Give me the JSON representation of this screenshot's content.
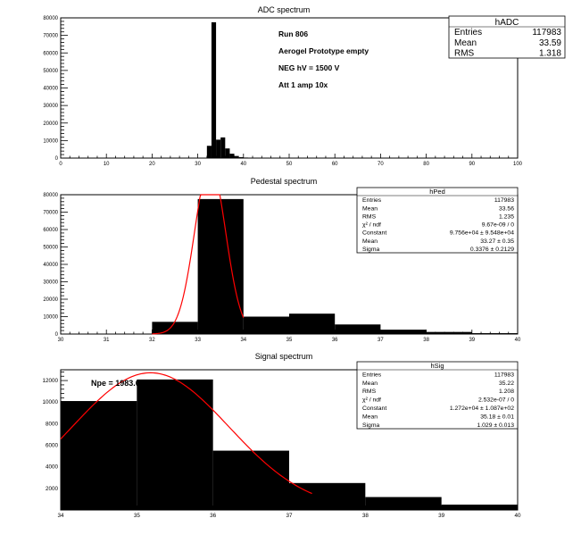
{
  "chart_data": [
    {
      "type": "bar",
      "title": "ADC spectrum",
      "xlim": [
        0,
        100
      ],
      "ylim": [
        0,
        80000
      ],
      "xticks": [
        0,
        10,
        20,
        30,
        40,
        50,
        60,
        70,
        80,
        90,
        100
      ],
      "yticks": [
        0,
        10000,
        20000,
        30000,
        40000,
        50000,
        60000,
        70000,
        80000
      ],
      "bins": [
        {
          "x0": 32,
          "x1": 33,
          "y": 7000
        },
        {
          "x0": 33,
          "x1": 34,
          "y": 77500
        },
        {
          "x0": 34,
          "x1": 35,
          "y": 10500
        },
        {
          "x0": 35,
          "x1": 36,
          "y": 11800
        },
        {
          "x0": 36,
          "x1": 37,
          "y": 5500
        },
        {
          "x0": 37,
          "x1": 38,
          "y": 2500
        },
        {
          "x0": 38,
          "x1": 39,
          "y": 1200
        },
        {
          "x0": 39,
          "x1": 40,
          "y": 500
        },
        {
          "x0": 40,
          "x1": 41,
          "y": 300
        },
        {
          "x0": 41,
          "x1": 42,
          "y": 150
        },
        {
          "x0": 42,
          "x1": 43,
          "y": 80
        }
      ],
      "annotations": [
        "Run  806",
        "Aerogel Prototype empty",
        "NEG hV = 1500 V",
        "Att 1 amp 10x"
      ],
      "stats": {
        "name": "hADC",
        "rows": [
          [
            "Entries",
            "117983"
          ],
          [
            "Mean",
            "33.59"
          ],
          [
            "RMS",
            "1.318"
          ]
        ]
      }
    },
    {
      "type": "bar",
      "title": "Pedestal spectrum",
      "xlim": [
        30,
        40
      ],
      "ylim": [
        0,
        80000
      ],
      "xticks": [
        30,
        31,
        32,
        33,
        34,
        35,
        36,
        37,
        38,
        39,
        40
      ],
      "yticks": [
        0,
        10000,
        20000,
        30000,
        40000,
        50000,
        60000,
        70000,
        80000
      ],
      "bins": [
        {
          "x0": 32,
          "x1": 33,
          "y": 7000
        },
        {
          "x0": 33,
          "x1": 34,
          "y": 77500
        },
        {
          "x0": 34,
          "x1": 35,
          "y": 10000
        },
        {
          "x0": 35,
          "x1": 36,
          "y": 11700
        },
        {
          "x0": 36,
          "x1": 37,
          "y": 5500
        },
        {
          "x0": 37,
          "x1": 38,
          "y": 2500
        },
        {
          "x0": 38,
          "x1": 39,
          "y": 1200
        },
        {
          "x0": 39,
          "x1": 40,
          "y": 500
        }
      ],
      "fit": {
        "type": "gaus",
        "constant": 97560,
        "mean": 33.27,
        "sigma": 0.3376,
        "range": [
          32.0,
          34.0
        ],
        "color": "#ff0000"
      },
      "stats": {
        "name": "hPed",
        "rows": [
          [
            "Entries",
            "117983"
          ],
          [
            "Mean",
            "33.56"
          ],
          [
            "RMS",
            "1.235"
          ],
          [
            "χ² / ndf",
            "9.67e-09 / 0"
          ],
          [
            "Constant",
            "9.756e+04 ± 9.548e+04"
          ],
          [
            "Mean",
            "33.27 ± 0.35"
          ],
          [
            "Sigma",
            "0.3376 ± 0.2129"
          ]
        ]
      }
    },
    {
      "type": "bar",
      "title": "Signal spectrum",
      "xlim": [
        34,
        40
      ],
      "ylim": [
        0,
        13000
      ],
      "xticks": [
        34,
        35,
        36,
        37,
        38,
        39,
        40
      ],
      "yticks": [
        2000,
        4000,
        6000,
        8000,
        10000,
        12000
      ],
      "bins": [
        {
          "x0": 34,
          "x1": 35,
          "y": 10100
        },
        {
          "x0": 35,
          "x1": 36,
          "y": 12100
        },
        {
          "x0": 36,
          "x1": 37,
          "y": 5500
        },
        {
          "x0": 37,
          "x1": 38,
          "y": 2500
        },
        {
          "x0": 38,
          "x1": 39,
          "y": 1200
        },
        {
          "x0": 39,
          "x1": 40,
          "y": 500
        }
      ],
      "fit": {
        "type": "gaus",
        "constant": 12720,
        "mean": 35.18,
        "sigma": 1.029,
        "range": [
          34.0,
          37.3
        ],
        "color": "#ff0000"
      },
      "annotations": [
        "Npe = 1983.6"
      ],
      "stats": {
        "name": "hSig",
        "rows": [
          [
            "Entries",
            "117983"
          ],
          [
            "Mean",
            "35.22"
          ],
          [
            "RMS",
            "1.208"
          ],
          [
            "χ² / ndf",
            "2.532e-07 / 0"
          ],
          [
            "Constant",
            "1.272e+04 ± 1.087e+02"
          ],
          [
            "Mean",
            "35.18 ± 0.01"
          ],
          [
            "Sigma",
            "1.029 ± 0.013"
          ]
        ]
      }
    }
  ]
}
